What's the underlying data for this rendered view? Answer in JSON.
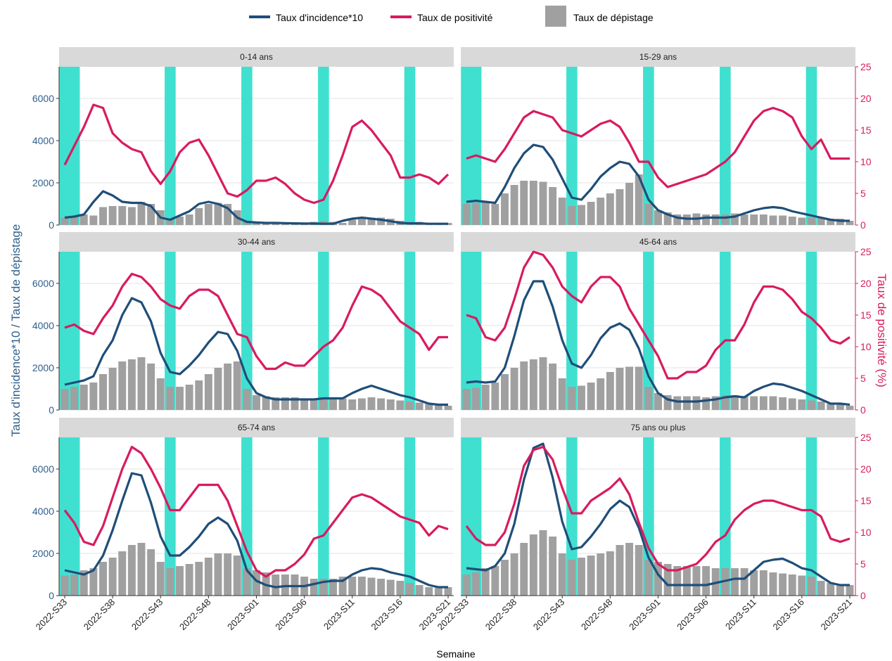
{
  "colors": {
    "incidence": "#1f4e79",
    "positivity": "#d81b60",
    "screening": "#a0a0a0",
    "holiday": "#40e0d0",
    "strip": "#d9d9d9",
    "grid": "#e3e3e3",
    "axis_left": "#2f5f8a",
    "axis_right": "#d81b60"
  },
  "chart_data": {
    "type": "bar+line",
    "legend": {
      "position": "top",
      "items": [
        "Taux d'incidence*10",
        "Taux de positivité",
        "Taux de dépistage"
      ]
    },
    "xlabel": "Semaine",
    "ylabel_left": "Taux d'incidence*10 / Taux de dépistage",
    "ylabel_right": "Taux de positivité (%)",
    "ylim_left": [
      0,
      7500
    ],
    "yticks_left": [
      0,
      2000,
      4000,
      6000
    ],
    "ylim_right": [
      0,
      25
    ],
    "yticks_right": [
      0,
      5,
      10,
      15,
      20,
      25
    ],
    "x_ticks": [
      "2022-S33",
      "2022-S38",
      "2022-S43",
      "2022-S48",
      "2023-S01",
      "2023-S06",
      "2023-S11",
      "2023-S16",
      "2023-S21"
    ],
    "weeks": [
      "2022-S33",
      "2022-S34",
      "2022-S35",
      "2022-S36",
      "2022-S37",
      "2022-S38",
      "2022-S39",
      "2022-S40",
      "2022-S41",
      "2022-S42",
      "2022-S43",
      "2022-S44",
      "2022-S45",
      "2022-S46",
      "2022-S47",
      "2022-S48",
      "2022-S49",
      "2022-S50",
      "2022-S51",
      "2022-S52",
      "2023-S01",
      "2023-S02",
      "2023-S03",
      "2023-S04",
      "2023-S05",
      "2023-S06",
      "2023-S07",
      "2023-S08",
      "2023-S09",
      "2023-S10",
      "2023-S11",
      "2023-S12",
      "2023-S13",
      "2023-S14",
      "2023-S15",
      "2023-S16",
      "2023-S17",
      "2023-S18",
      "2023-S19",
      "2023-S20",
      "2023-S21"
    ],
    "holiday_periods": [
      [
        "2022-S33",
        "2022-S34"
      ],
      [
        "2022-S44",
        "2022-S44"
      ],
      [
        "2022-S52",
        "2022-S52"
      ],
      [
        "2023-S08",
        "2023-S08"
      ],
      [
        "2023-S17",
        "2023-S17"
      ]
    ],
    "panels": [
      {
        "title": "0-14 ans",
        "incidence": [
          350,
          400,
          500,
          1100,
          1600,
          1400,
          1100,
          1050,
          1050,
          900,
          350,
          250,
          450,
          650,
          1000,
          1100,
          1000,
          800,
          350,
          150,
          120,
          100,
          100,
          90,
          80,
          70,
          70,
          60,
          60,
          200,
          300,
          350,
          300,
          250,
          180,
          100,
          80,
          80,
          60,
          60,
          60
        ],
        "positivity": [
          9.5,
          12.5,
          15.5,
          19,
          18.5,
          14.5,
          13,
          12,
          11.5,
          8.5,
          6.5,
          8.5,
          11.5,
          13,
          13.5,
          11,
          8,
          5,
          4.5,
          5.5,
          7,
          7,
          7.5,
          6.5,
          5,
          4,
          3.5,
          4,
          7,
          11,
          15.5,
          16.5,
          15,
          13,
          11,
          7.5,
          7.5,
          8,
          7.5,
          6.5,
          8
        ],
        "screening": [
          350,
          400,
          500,
          450,
          850,
          900,
          900,
          850,
          1100,
          1000,
          700,
          300,
          400,
          500,
          800,
          1000,
          1050,
          1000,
          700,
          200,
          150,
          100,
          100,
          100,
          100,
          100,
          150,
          200,
          150,
          100,
          250,
          300,
          350,
          350,
          300,
          200,
          150,
          150,
          100,
          100,
          100
        ]
      },
      {
        "title": "15-29 ans",
        "incidence": [
          1100,
          1150,
          1100,
          1050,
          1800,
          2700,
          3400,
          3800,
          3700,
          3100,
          2200,
          1300,
          1200,
          1700,
          2300,
          2700,
          3000,
          2900,
          2300,
          1200,
          700,
          500,
          350,
          300,
          300,
          350,
          350,
          350,
          400,
          550,
          700,
          800,
          850,
          800,
          650,
          550,
          450,
          350,
          250,
          200,
          200
        ],
        "positivity": [
          10.5,
          11,
          10.5,
          10,
          12,
          14.5,
          17,
          18,
          17.5,
          17,
          15,
          14.5,
          14,
          15,
          16,
          16.5,
          15.5,
          13,
          10,
          10,
          7.5,
          6,
          6.5,
          7,
          7.5,
          8,
          9,
          10,
          11.5,
          14,
          16.5,
          18,
          18.5,
          18,
          17,
          14,
          12,
          13.5,
          10.5,
          10.5,
          10.5
        ],
        "screening": [
          1000,
          1050,
          1100,
          1000,
          1500,
          1900,
          2100,
          2100,
          2050,
          1800,
          1300,
          900,
          950,
          1100,
          1300,
          1500,
          1700,
          2000,
          2400,
          1000,
          700,
          600,
          500,
          500,
          550,
          500,
          500,
          500,
          550,
          500,
          500,
          500,
          450,
          450,
          400,
          350,
          350,
          350,
          300,
          300,
          200
        ]
      },
      {
        "title": "30-44 ans",
        "incidence": [
          1200,
          1300,
          1400,
          1600,
          2600,
          3300,
          4500,
          5300,
          5100,
          4200,
          2700,
          1800,
          1700,
          2100,
          2600,
          3200,
          3700,
          3600,
          2800,
          1500,
          800,
          600,
          500,
          500,
          500,
          500,
          500,
          550,
          550,
          550,
          800,
          1000,
          1150,
          1000,
          850,
          700,
          600,
          450,
          300,
          250,
          250
        ],
        "positivity": [
          13,
          13.5,
          12.5,
          12,
          14.5,
          16.5,
          19.5,
          21.5,
          21,
          19.5,
          17.5,
          16.5,
          16,
          18,
          19,
          19,
          18,
          15,
          12,
          11.5,
          8.5,
          6.5,
          6.5,
          7.5,
          7,
          7,
          8.5,
          10,
          11,
          13,
          16.5,
          19.5,
          19,
          18,
          16,
          14,
          13,
          12,
          9.5,
          11.5,
          11.5
        ],
        "screening": [
          1000,
          1100,
          1200,
          1300,
          1700,
          2000,
          2300,
          2400,
          2500,
          2200,
          1500,
          1100,
          1100,
          1200,
          1400,
          1700,
          2000,
          2200,
          2300,
          1000,
          700,
          650,
          600,
          600,
          600,
          550,
          550,
          600,
          600,
          550,
          500,
          550,
          600,
          550,
          500,
          450,
          400,
          350,
          300,
          250,
          200
        ]
      },
      {
        "title": "45-64 ans",
        "incidence": [
          1300,
          1350,
          1300,
          1350,
          2000,
          3500,
          5200,
          6100,
          6100,
          4900,
          3300,
          2200,
          2000,
          2600,
          3400,
          3900,
          4100,
          3800,
          2900,
          1600,
          800,
          500,
          400,
          400,
          400,
          450,
          500,
          600,
          650,
          600,
          900,
          1100,
          1250,
          1200,
          1050,
          900,
          700,
          500,
          300,
          300,
          250
        ],
        "positivity": [
          15,
          14.5,
          11.5,
          11,
          13,
          17.5,
          22.5,
          25,
          24.5,
          22.5,
          19.5,
          18,
          17,
          19.5,
          21,
          21,
          19.5,
          16,
          13.5,
          11,
          8.5,
          5,
          5,
          6,
          6,
          7,
          9.5,
          11,
          11,
          13.5,
          17,
          19.5,
          19.5,
          19,
          17.5,
          15.5,
          14.5,
          13,
          11,
          10.5,
          11.5
        ],
        "screening": [
          1000,
          1050,
          1200,
          1300,
          1700,
          2000,
          2300,
          2400,
          2500,
          2200,
          1500,
          1100,
          1150,
          1300,
          1500,
          1800,
          2000,
          2050,
          2050,
          1100,
          800,
          700,
          650,
          650,
          650,
          600,
          650,
          700,
          700,
          650,
          650,
          650,
          650,
          600,
          550,
          500,
          450,
          400,
          300,
          250,
          200
        ]
      },
      {
        "title": "65-74 ans",
        "incidence": [
          1200,
          1100,
          1000,
          1200,
          1900,
          3100,
          4500,
          5800,
          5700,
          4400,
          2800,
          1900,
          1900,
          2300,
          2800,
          3400,
          3700,
          3400,
          2600,
          1200,
          700,
          500,
          400,
          450,
          450,
          450,
          550,
          650,
          700,
          700,
          1000,
          1200,
          1300,
          1250,
          1100,
          1000,
          900,
          700,
          500,
          400,
          400
        ],
        "positivity": [
          13.5,
          11.5,
          8.5,
          8,
          11,
          15.5,
          20,
          23.5,
          22.5,
          20,
          17,
          13.5,
          13.5,
          15.5,
          17.5,
          17.5,
          17.5,
          15,
          11,
          7,
          4,
          3,
          4,
          4,
          5,
          6.5,
          9,
          9.5,
          11.5,
          13.5,
          15.5,
          16,
          15.5,
          14.5,
          13.5,
          12.5,
          12,
          11.5,
          9.5,
          11,
          10.5
        ],
        "screening": [
          950,
          1000,
          1200,
          1300,
          1600,
          1800,
          2100,
          2400,
          2500,
          2200,
          1600,
          1300,
          1400,
          1500,
          1600,
          1800,
          2000,
          2000,
          1900,
          1300,
          1200,
          1100,
          1000,
          1000,
          1000,
          900,
          800,
          800,
          800,
          900,
          900,
          900,
          850,
          800,
          750,
          700,
          600,
          500,
          400,
          400,
          400
        ]
      },
      {
        "title": "75 ans ou plus",
        "incidence": [
          1300,
          1250,
          1200,
          1400,
          2000,
          3400,
          5500,
          7000,
          7200,
          5600,
          3500,
          2200,
          2300,
          2800,
          3400,
          4100,
          4500,
          4200,
          3200,
          1800,
          1000,
          500,
          500,
          500,
          500,
          500,
          600,
          700,
          800,
          800,
          1200,
          1600,
          1700,
          1750,
          1550,
          1300,
          1200,
          900,
          600,
          500,
          500
        ],
        "positivity": [
          11,
          9,
          8,
          8,
          10,
          14.5,
          20.5,
          23,
          23.5,
          21.5,
          17,
          13,
          13,
          15,
          16,
          17,
          18.5,
          16,
          11.5,
          7.5,
          5,
          4,
          4,
          4.5,
          5,
          6.5,
          8.5,
          9.5,
          12,
          13.5,
          14.5,
          15,
          15,
          14.5,
          14,
          13.5,
          13.5,
          12.5,
          9,
          8.5,
          9
        ],
        "screening": [
          1000,
          1100,
          1300,
          1400,
          1700,
          2000,
          2500,
          2900,
          3100,
          2800,
          2000,
          1700,
          1800,
          1900,
          2000,
          2100,
          2400,
          2500,
          2400,
          1700,
          1600,
          1500,
          1400,
          1400,
          1400,
          1400,
          1300,
          1300,
          1300,
          1300,
          1200,
          1200,
          1100,
          1050,
          1000,
          950,
          900,
          700,
          600,
          500,
          500
        ]
      }
    ]
  }
}
